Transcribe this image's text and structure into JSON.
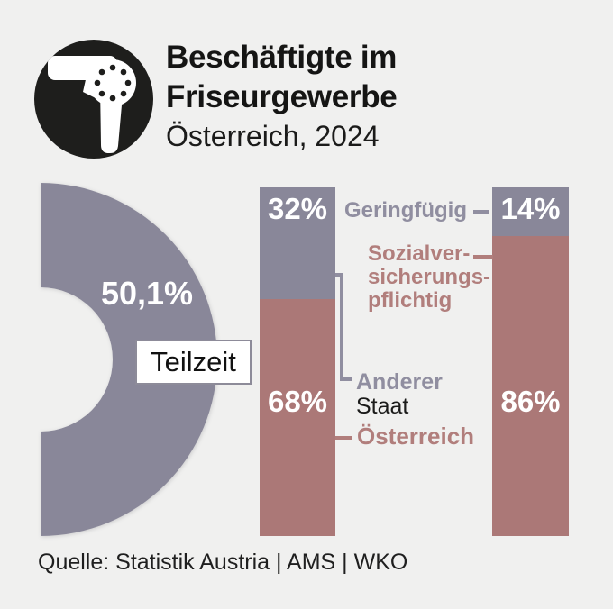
{
  "background": "#f0f0ef",
  "colors": {
    "gray_purple": "#898799",
    "rose": "#ab7877",
    "gray_label": "#908ea0",
    "rose_label": "#b17e7c",
    "icon_black": "#1e1e1c",
    "text_dark": "#151514",
    "white": "#ffffff",
    "teilzeit_border": "#8d8b99"
  },
  "header": {
    "icon": "hairdryer-icon",
    "title_lines": [
      "Beschäftigte im",
      "Friseurgewerbe"
    ],
    "subtitle": "Österreich, 2024"
  },
  "annotations": {
    "geringfuegig": "Geringfügig",
    "sozial_line1": "Sozialver-",
    "sozial_line2": "sicherungs-",
    "sozial_line3": "pflichtig",
    "anderer": "Anderer",
    "staat": "Staat",
    "oesterreich": "Österreich"
  },
  "source": "Quelle: Statistik Austria | AMS | WKO",
  "chart_data": [
    {
      "type": "pie",
      "subtype": "half_donut",
      "title": "Teilzeit",
      "labels": [
        "Teilzeit"
      ],
      "values": [
        50.1
      ],
      "value_display": "50,1%",
      "color": "#898799"
    },
    {
      "type": "bar",
      "subtype": "stacked_percent",
      "unit": "%",
      "ylim": [
        0,
        100
      ],
      "bars": [
        {
          "segments": [
            {
              "label": "Anderer Staat",
              "value": 32,
              "display": "32%",
              "color": "#898799"
            },
            {
              "label": "Österreich",
              "value": 68,
              "display": "68%",
              "color": "#ab7877"
            }
          ]
        },
        {
          "segments": [
            {
              "label": "Geringfügig",
              "value": 14,
              "display": "14%",
              "color": "#898799"
            },
            {
              "label": "Sozialversicherungspflichtig",
              "value": 86,
              "display": "86%",
              "color": "#ab7877"
            }
          ]
        }
      ]
    }
  ]
}
